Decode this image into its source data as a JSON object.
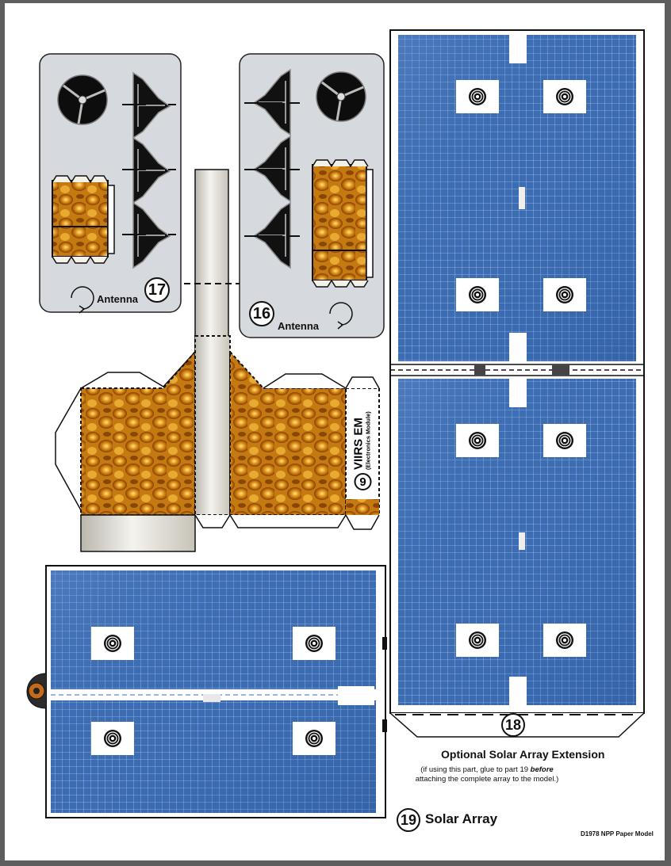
{
  "parts": {
    "antenna_17": {
      "number": "17",
      "label": "Antenna"
    },
    "antenna_16": {
      "number": "16",
      "label": "Antenna"
    },
    "viirs_em": {
      "number": "9",
      "title": "VIIRS EM",
      "subtitle": "(Electronics Module)"
    },
    "solar_ext": {
      "number": "18",
      "title": "Optional Solar Array Extension",
      "note_before": "(if using this part, glue to part 19 ",
      "note_emph": "before",
      "note_line2": "attaching the complete array to the model.)"
    },
    "solar_array": {
      "number": "19",
      "title": "Solar Array"
    }
  },
  "footer": {
    "credit": "D1978 NPP Paper Model"
  },
  "colors": {
    "panel_gray": "#d6d9de",
    "solar_blue": "#3f6fb4",
    "gold": "#c8850f",
    "gold_light": "#f0b53a"
  }
}
